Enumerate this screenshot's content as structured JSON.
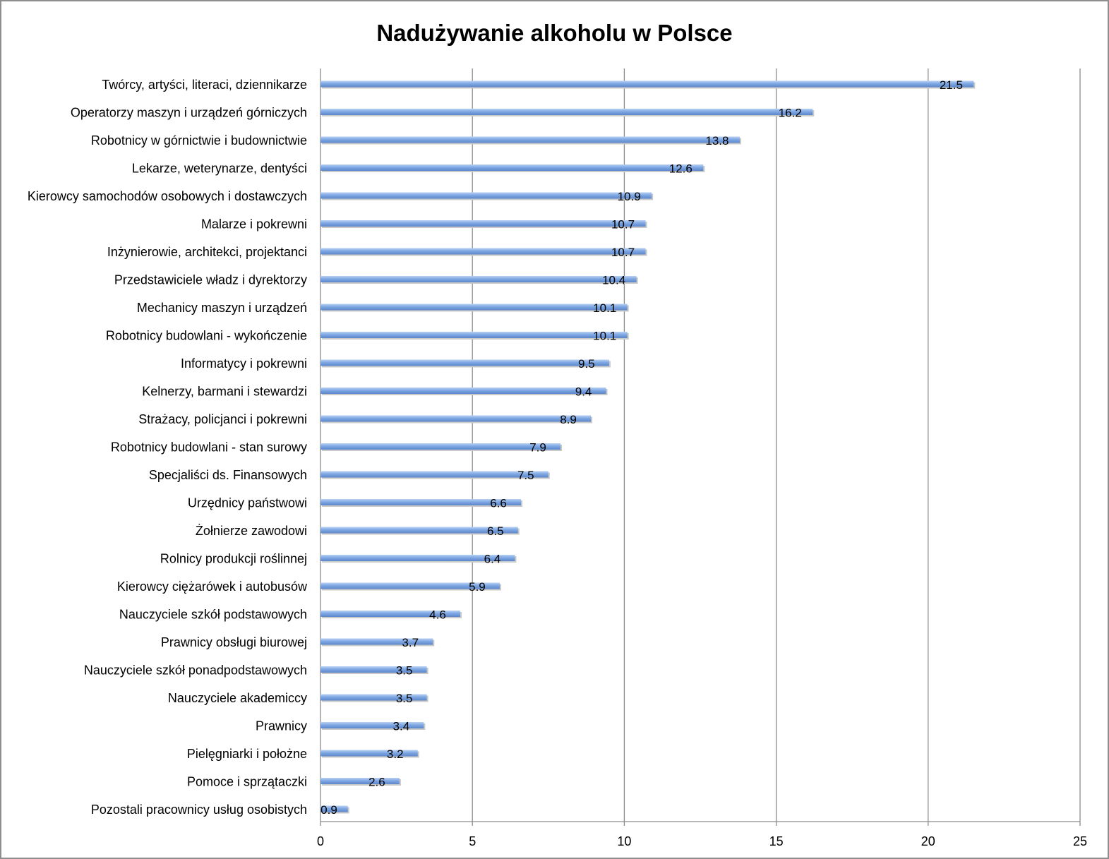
{
  "chart_data": {
    "type": "bar",
    "orientation": "horizontal",
    "title": "Nadużywanie alkoholu w Polsce",
    "xlabel": "",
    "ylabel": "",
    "xlim": [
      0,
      25
    ],
    "xticks": [
      0,
      5,
      10,
      15,
      20,
      25
    ],
    "grid": true,
    "legend": "none",
    "bar_color": "#7fa8e4",
    "categories": [
      "Twórcy, artyści, literaci, dziennikarze",
      "Operatorzy maszyn i urządzeń górniczych",
      "Robotnicy w górnictwie i budownictwie",
      "Lekarze, weterynarze, dentyści",
      "Kierowcy samochodów osobowych i dostawczych",
      "Malarze i pokrewni",
      "Inżynierowie, architekci, projektanci",
      "Przedstawiciele władz i dyrektorzy",
      "Mechanicy maszyn i urządzeń",
      "Robotnicy budowlani - wykończenie",
      "Informatycy i pokrewni",
      "Kelnerzy, barmani i stewardzi",
      "Strażacy, policjanci i pokrewni",
      "Robotnicy budowlani - stan surowy",
      "Specjaliści ds. Finansowych",
      "Urzędnicy państwowi",
      "Żołnierze zawodowi",
      "Rolnicy produkcji roślinnej",
      "Kierowcy ciężarówek i autobusów",
      "Nauczyciele szkół podstawowych",
      "Prawnicy obsługi biurowej",
      "Nauczyciele szkół ponadpodstawowych",
      "Nauczyciele akademiccy",
      "Prawnicy",
      "Pielęgniarki i położne",
      "Pomoce i sprzątaczki",
      "Pozostali pracownicy usług osobistych"
    ],
    "values": [
      21.5,
      16.2,
      13.8,
      12.6,
      10.9,
      10.7,
      10.7,
      10.4,
      10.1,
      10.1,
      9.5,
      9.4,
      8.9,
      7.9,
      7.5,
      6.6,
      6.5,
      6.4,
      5.9,
      4.6,
      3.7,
      3.5,
      3.5,
      3.4,
      3.2,
      2.6,
      0.9
    ]
  }
}
